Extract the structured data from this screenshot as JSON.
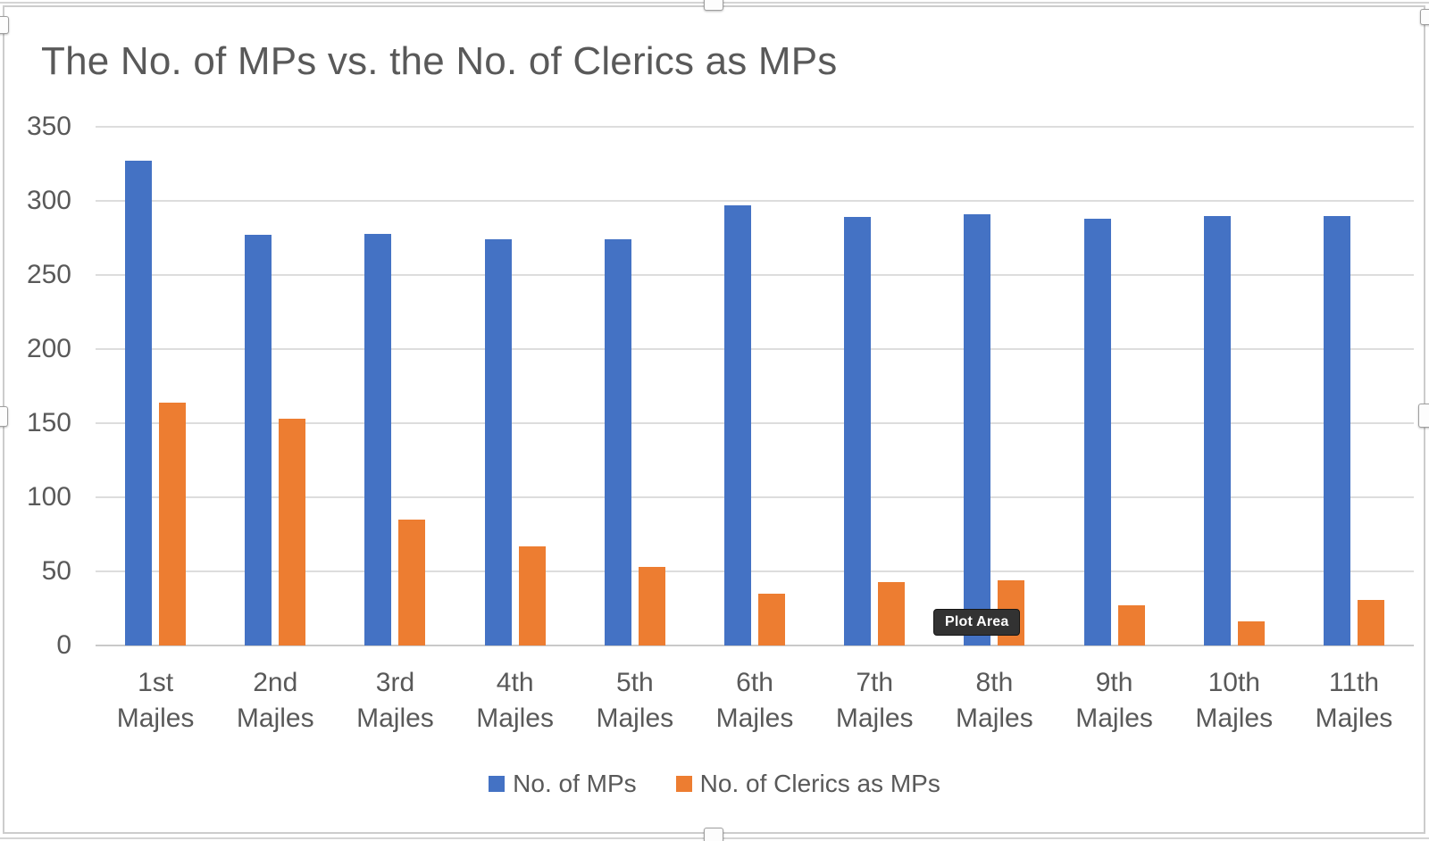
{
  "overlay": {
    "tooltip_text": "Plot Area"
  },
  "colors": {
    "series_blue": "#4472C4",
    "series_orange": "#ED7D31",
    "text_grey": "#595959",
    "gridline": "#DDDDDD"
  },
  "chart_data": {
    "type": "bar",
    "title": "The No. of MPs vs. the No. of Clerics as MPs",
    "categories": [
      [
        "1st",
        "Majles"
      ],
      [
        "2nd",
        "Majles"
      ],
      [
        "3rd",
        "Majles"
      ],
      [
        "4th",
        "Majles"
      ],
      [
        "5th",
        "Majles"
      ],
      [
        "6th",
        "Majles"
      ],
      [
        "7th",
        "Majles"
      ],
      [
        "8th",
        "Majles"
      ],
      [
        "9th",
        "Majles"
      ],
      [
        "10th",
        "Majles"
      ],
      [
        "11th",
        "Majles"
      ]
    ],
    "series": [
      {
        "name": "No. of MPs",
        "color": "#4472C4",
        "values": [
          327,
          277,
          278,
          274,
          274,
          297,
          289,
          291,
          288,
          290,
          290
        ]
      },
      {
        "name": "No. of Clerics as MPs",
        "color": "#ED7D31",
        "values": [
          164,
          153,
          85,
          67,
          53,
          35,
          43,
          44,
          27,
          16,
          31
        ]
      }
    ],
    "xlabel": "",
    "ylabel": "",
    "ylim": [
      0,
      350
    ],
    "yticks": [
      0,
      50,
      100,
      150,
      200,
      250,
      300,
      350
    ],
    "grid": true,
    "legend_position": "bottom"
  }
}
